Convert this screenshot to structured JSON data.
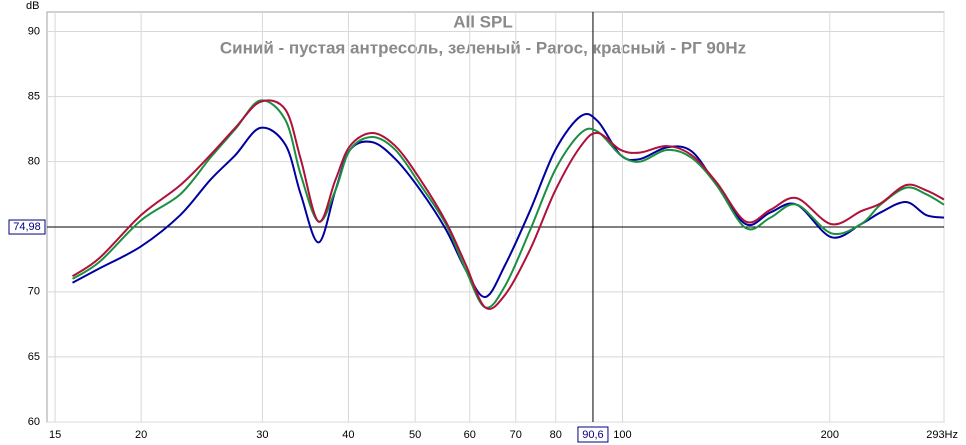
{
  "chart_data": {
    "type": "line",
    "title": "All SPL",
    "subtitle": "Синий - пустая антресоль, зеленый - Paroc, красный - РГ 90Hz",
    "y_label": "dB",
    "log_x": true,
    "grid": true,
    "xlim": [
      14.6,
      293
    ],
    "ylim": [
      60,
      91.5
    ],
    "xticks": [
      15,
      20,
      30,
      40,
      50,
      60,
      70,
      80,
      100,
      200,
      {
        "value": 293,
        "label": "293Hz"
      }
    ],
    "yticks": [
      60,
      65,
      70,
      80,
      85,
      90
    ],
    "x_cursor": {
      "value": 90.6,
      "label": "90,6"
    },
    "y_cursor": {
      "value": 74.98,
      "label": "74,98"
    },
    "x": [
      15.9,
      17.4,
      20,
      22.8,
      25.2,
      27.4,
      29.8,
      32.4,
      34.1,
      36.2,
      38.3,
      40.2,
      43.3,
      46.8,
      50.9,
      55.4,
      59.2,
      63.2,
      67.6,
      73.5,
      79.9,
      87,
      92.1,
      99.4,
      106,
      116,
      126,
      137,
      151,
      164,
      179,
      201,
      222,
      237,
      258,
      276,
      293
    ],
    "series": [
      {
        "color": "#0000a0",
        "values": [
          70.7,
          71.8,
          73.5,
          75.9,
          78.6,
          80.5,
          82.6,
          81.3,
          77.5,
          73.8,
          77.8,
          80.9,
          81.5,
          80.2,
          77.8,
          74.8,
          71.7,
          69.6,
          72.1,
          76.3,
          80.9,
          83.5,
          83.1,
          80.5,
          80.2,
          81.1,
          80.8,
          78.2,
          75.2,
          76.1,
          76.7,
          74.2,
          75.2,
          76.1,
          76.9,
          75.9,
          75.7
        ]
      },
      {
        "color": "#1a9040",
        "values": [
          71.0,
          72.3,
          75.5,
          77.5,
          80.3,
          82.5,
          84.7,
          83.2,
          79.0,
          75.4,
          77.8,
          80.9,
          81.9,
          80.9,
          78.2,
          75.2,
          71.7,
          68.8,
          70.5,
          74.8,
          79.4,
          82.2,
          82.3,
          80.5,
          80.0,
          80.9,
          80.3,
          78.2,
          74.9,
          75.7,
          76.7,
          74.5,
          75.2,
          76.7,
          78.0,
          77.5,
          76.7
        ]
      },
      {
        "color": "#b0103a",
        "values": [
          71.2,
          72.6,
          75.9,
          78.2,
          80.5,
          82.6,
          84.6,
          84.0,
          80.2,
          75.4,
          78.6,
          81.2,
          82.2,
          81.2,
          78.6,
          75.4,
          72.1,
          68.8,
          69.8,
          73.3,
          77.8,
          81.2,
          82.2,
          80.9,
          80.7,
          81.2,
          80.5,
          78.4,
          75.4,
          76.3,
          77.2,
          75.2,
          76.2,
          76.8,
          78.2,
          77.8,
          77.1
        ]
      }
    ]
  }
}
